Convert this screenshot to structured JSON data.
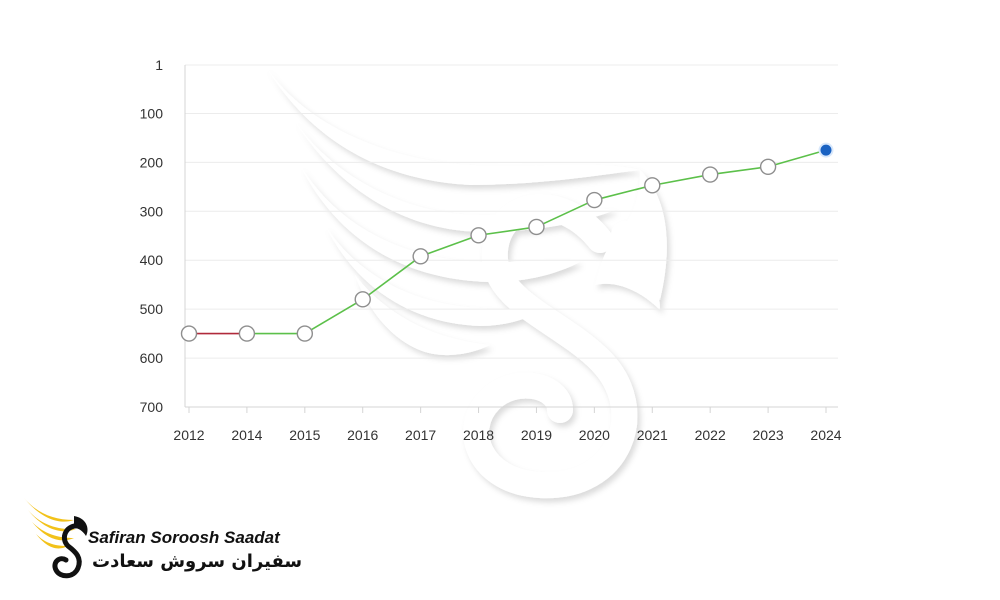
{
  "chart_data": {
    "type": "line",
    "title": "",
    "xlabel": "",
    "ylabel": "",
    "x": [
      "2012",
      "2014",
      "2015",
      "2016",
      "2017",
      "2018",
      "2019",
      "2020",
      "2021",
      "2022",
      "2023",
      "2024"
    ],
    "y_ticks": [
      "1",
      "100",
      "200",
      "300",
      "400",
      "500",
      "600",
      "700"
    ],
    "y_tick_values": [
      1,
      100,
      200,
      300,
      400,
      500,
      600,
      700
    ],
    "ylim": [
      700,
      1
    ],
    "y_inverted": true,
    "grid": true,
    "series": [
      {
        "values": [
          550,
          550,
          550,
          480,
          392,
          349,
          332,
          277,
          247,
          225,
          209,
          175
        ],
        "line_color": "#5cc04a",
        "first_segment_color": "#b02a3b",
        "marker_fill": "#ffffff",
        "marker_stroke": "#8e8e8e",
        "last_marker_fill": "#1a62c2"
      }
    ],
    "colors": {
      "grid": "#ececec",
      "axis": "#d4d4d4",
      "tick_text": "#333333"
    }
  },
  "logo": {
    "name_en": "Safiran Soroosh Saadat",
    "name_fa": "سفیران سروش سعادت",
    "brand_color": "#f2c21a",
    "icon": "winged-swan-logo-icon"
  },
  "watermark": {
    "icon": "winged-swan-watermark-icon"
  }
}
